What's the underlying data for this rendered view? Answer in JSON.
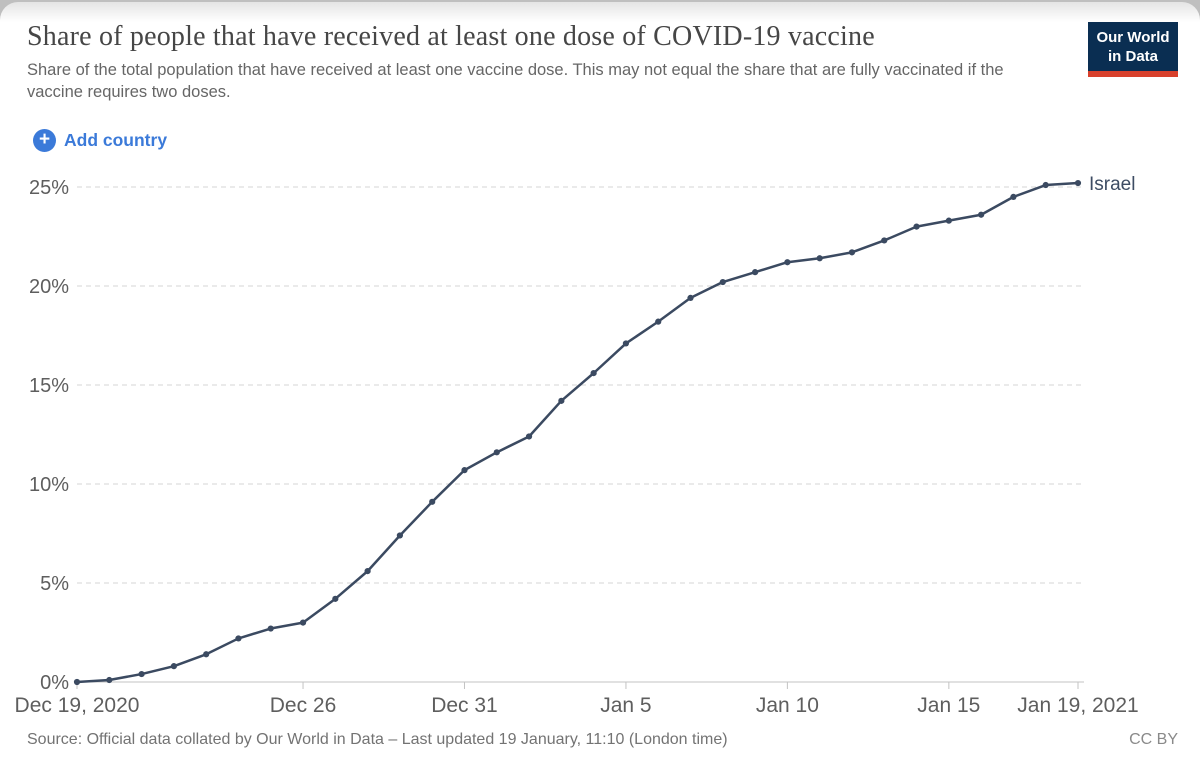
{
  "header": {
    "title": "Share of people that have received at least one dose of COVID-19 vaccine",
    "subtitle": "Share of the total population that have received at least one vaccine dose. This may not equal the share that are fully vaccinated if the vaccine requires two doses.",
    "logo": {
      "line1": "Our World",
      "line2": "in Data"
    }
  },
  "controls": {
    "add_country_label": "Add country",
    "plus_glyph": "+"
  },
  "colors": {
    "accent_blue": "#3b7ad9",
    "series_line": "#3b4a61",
    "logo_navy": "#0a2e52",
    "logo_red": "#d8402c"
  },
  "chart_data": {
    "type": "line",
    "title": "Share of people that have received at least one dose of COVID-19 vaccine",
    "xlabel": "",
    "ylabel": "",
    "ylim": [
      0,
      25
    ],
    "grid": true,
    "legend_position": "end-of-line",
    "x": [
      "Dec 19, 2020",
      "Dec 20",
      "Dec 21",
      "Dec 22",
      "Dec 23",
      "Dec 24",
      "Dec 25",
      "Dec 26",
      "Dec 27",
      "Dec 28",
      "Dec 29",
      "Dec 30",
      "Dec 31",
      "Jan 1",
      "Jan 2",
      "Jan 3",
      "Jan 4",
      "Jan 5",
      "Jan 6",
      "Jan 7",
      "Jan 8",
      "Jan 9",
      "Jan 10",
      "Jan 11",
      "Jan 12",
      "Jan 13",
      "Jan 14",
      "Jan 15",
      "Jan 16",
      "Jan 17",
      "Jan 18",
      "Jan 19, 2021"
    ],
    "series": [
      {
        "name": "Israel",
        "values": [
          0.0,
          0.1,
          0.4,
          0.8,
          1.4,
          2.2,
          2.7,
          3.0,
          4.2,
          5.6,
          7.4,
          9.1,
          10.7,
          11.6,
          12.4,
          14.2,
          15.6,
          17.1,
          18.2,
          19.4,
          20.2,
          20.7,
          21.2,
          21.4,
          21.7,
          22.3,
          23.0,
          23.3,
          23.6,
          24.5,
          25.1,
          25.2
        ]
      }
    ],
    "x_ticks": [
      {
        "index": 0,
        "label": "Dec 19, 2020"
      },
      {
        "index": 7,
        "label": "Dec 26"
      },
      {
        "index": 12,
        "label": "Dec 31"
      },
      {
        "index": 17,
        "label": "Jan 5"
      },
      {
        "index": 22,
        "label": "Jan 10"
      },
      {
        "index": 27,
        "label": "Jan 15"
      },
      {
        "index": 31,
        "label": "Jan 19, 2021"
      }
    ],
    "y_ticks": [
      {
        "value": 0,
        "label": "0%"
      },
      {
        "value": 5,
        "label": "5%"
      },
      {
        "value": 10,
        "label": "10%"
      },
      {
        "value": 15,
        "label": "15%"
      },
      {
        "value": 20,
        "label": "20%"
      },
      {
        "value": 25,
        "label": "25%"
      }
    ]
  },
  "footer": {
    "source": "Source: Official data collated by Our World in Data – Last updated 19 January, 11:10 (London time)",
    "license": "CC BY"
  }
}
